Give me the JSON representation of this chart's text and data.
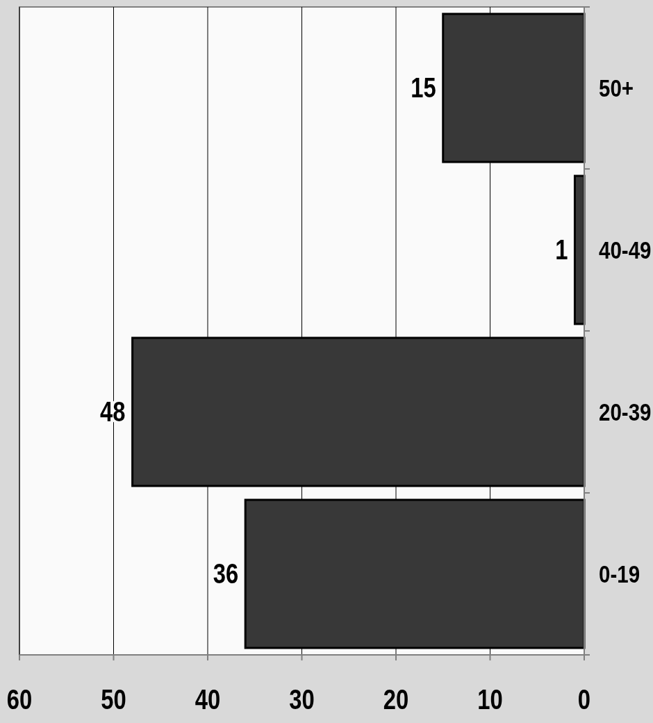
{
  "chart_data": {
    "type": "bar",
    "orientation": "horizontal",
    "categories": [
      "50+",
      "40-49",
      "20-39",
      "0-19"
    ],
    "values": [
      15,
      1,
      48,
      36
    ],
    "color": "#383838",
    "xlim": [
      60,
      0
    ],
    "xticks": [
      60,
      50,
      40,
      30,
      20,
      10,
      0
    ],
    "grid": "x",
    "data_labels": true
  }
}
